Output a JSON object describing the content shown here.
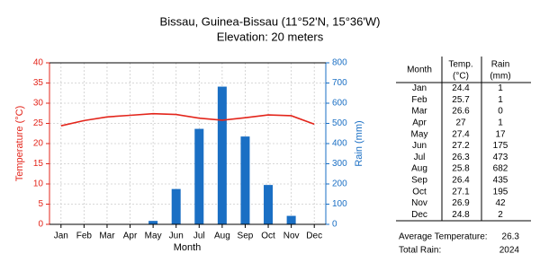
{
  "chart_data": {
    "type": "combo",
    "title": "Bissau, Guinea-Bissau (11°52'N, 15°36'W)",
    "subtitle": "Elevation: 20 meters",
    "x_label": "Month",
    "y_label": "Temperature (°C)",
    "y2_label": "Rain (mm)",
    "categories": [
      "Jan",
      "Feb",
      "Mar",
      "Apr",
      "May",
      "Jun",
      "Jul",
      "Aug",
      "Sep",
      "Oct",
      "Nov",
      "Dec"
    ],
    "series": [
      {
        "type": "line",
        "color": "#e3251b",
        "values": [
          24.4,
          25.7,
          26.6,
          27,
          27.4,
          27.2,
          26.3,
          25.8,
          26.4,
          27.1,
          26.9,
          24.8
        ]
      },
      {
        "type": "bar",
        "axis": "y2",
        "color": "#1a6fc4",
        "values": [
          1,
          1,
          0,
          1,
          17,
          175,
          473,
          682,
          435,
          195,
          42,
          2
        ]
      }
    ],
    "ylim": [
      0,
      40
    ],
    "yticks": [
      0,
      5,
      10,
      15,
      20,
      25,
      30,
      35,
      40
    ],
    "y2lim": [
      0,
      800
    ],
    "y2ticks": [
      0,
      100,
      200,
      300,
      400,
      500,
      600,
      700,
      800
    ],
    "grid": true
  },
  "table": {
    "header": [
      [
        "Month"
      ],
      [
        "Temp.",
        "(°C)"
      ],
      [
        "Rain",
        "(mm)"
      ]
    ]
  },
  "summary": [
    {
      "label": "Average Temperature:",
      "value": 26.3
    },
    {
      "label": "Total Rain:",
      "value": 2024
    }
  ]
}
